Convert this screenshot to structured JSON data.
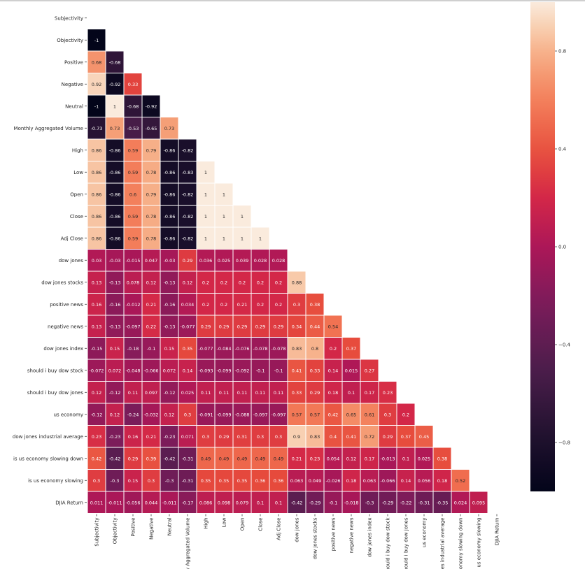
{
  "chart_data": {
    "type": "heatmap",
    "triangle": "lower",
    "colormap": "rocket",
    "vmin": -1,
    "vmax": 1,
    "labels": [
      "Subjectivity",
      "Objectivity",
      "Positive",
      "Negative",
      "Neutral",
      "Monthly Aggregated Volume",
      "High",
      "Low",
      "Open",
      "Close",
      "Adj Close",
      "dow jones",
      "dow jones stocks",
      "positive news",
      "negative news",
      "dow jones index",
      "should i buy dow stock",
      "should i buy dow jones",
      "us economy",
      "dow jones industrial average",
      "is us economy slowing down",
      "is us economy slowing",
      "DJIA Return"
    ],
    "values": [
      [],
      [
        "-1"
      ],
      [
        "0.68",
        "-0.68"
      ],
      [
        "0.92",
        "-0.92",
        "0.33"
      ],
      [
        "-1",
        "1",
        "-0.68",
        "-0.92"
      ],
      [
        "-0.73",
        "0.73",
        "-0.53",
        "-0.65",
        "0.73"
      ],
      [
        "0.86",
        "-0.86",
        "0.59",
        "0.79",
        "-0.86",
        "-0.82"
      ],
      [
        "0.86",
        "-0.86",
        "0.59",
        "0.78",
        "-0.86",
        "-0.83",
        "1"
      ],
      [
        "0.86",
        "-0.86",
        "0.6",
        "0.79",
        "-0.86",
        "-0.82",
        "1",
        "1"
      ],
      [
        "0.86",
        "-0.86",
        "0.59",
        "0.78",
        "-0.86",
        "-0.82",
        "1",
        "1",
        "1"
      ],
      [
        "0.86",
        "-0.86",
        "0.59",
        "0.78",
        "-0.86",
        "-0.82",
        "1",
        "1",
        "1",
        "1"
      ],
      [
        "0.03",
        "-0.03",
        "-0.015",
        "0.047",
        "-0.03",
        "0.29",
        "0.036",
        "0.025",
        "0.039",
        "0.028",
        "0.028"
      ],
      [
        "0.13",
        "-0.13",
        "0.078",
        "0.12",
        "-0.13",
        "0.12",
        "0.2",
        "0.2",
        "0.2",
        "0.2",
        "0.2",
        "0.88"
      ],
      [
        "0.16",
        "-0.16",
        "-0.012",
        "0.21",
        "-0.16",
        "0.034",
        "0.2",
        "0.2",
        "0.21",
        "0.2",
        "0.2",
        "0.3",
        "0.38"
      ],
      [
        "0.13",
        "-0.13",
        "-0.097",
        "0.22",
        "-0.13",
        "-0.077",
        "0.29",
        "0.29",
        "0.29",
        "0.29",
        "0.29",
        "0.34",
        "0.44",
        "0.54"
      ],
      [
        "-0.15",
        "0.15",
        "-0.18",
        "-0.1",
        "0.15",
        "0.35",
        "-0.077",
        "-0.084",
        "-0.076",
        "-0.078",
        "-0.078",
        "0.83",
        "0.8",
        "0.2",
        "0.37"
      ],
      [
        "-0.072",
        "0.072",
        "-0.048",
        "-0.066",
        "0.072",
        "0.14",
        "-0.093",
        "-0.099",
        "-0.092",
        "-0.1",
        "-0.1",
        "0.41",
        "0.33",
        "0.14",
        "0.015",
        "0.27"
      ],
      [
        "0.12",
        "-0.12",
        "0.11",
        "0.097",
        "-0.12",
        "0.025",
        "0.11",
        "0.11",
        "0.11",
        "0.11",
        "0.11",
        "0.33",
        "0.29",
        "0.18",
        "0.1",
        "0.17",
        "0.23"
      ],
      [
        "-0.12",
        "0.12",
        "-0.24",
        "-0.032",
        "0.12",
        "0.3",
        "-0.091",
        "-0.099",
        "-0.088",
        "-0.097",
        "-0.097",
        "0.57",
        "0.57",
        "0.42",
        "0.65",
        "0.61",
        "0.3",
        "0.2"
      ],
      [
        "0.23",
        "-0.23",
        "0.16",
        "0.21",
        "-0.23",
        "0.071",
        "0.3",
        "0.29",
        "0.31",
        "0.3",
        "0.3",
        "0.9",
        "0.83",
        "0.4",
        "0.41",
        "0.72",
        "0.29",
        "0.37",
        "0.45"
      ],
      [
        "0.42",
        "-0.42",
        "0.29",
        "0.39",
        "-0.42",
        "-0.31",
        "0.49",
        "0.49",
        "0.49",
        "0.49",
        "0.49",
        "0.21",
        "0.23",
        "0.054",
        "0.12",
        "0.17",
        "-0.013",
        "0.1",
        "0.025",
        "0.38"
      ],
      [
        "0.3",
        "-0.3",
        "0.15",
        "0.3",
        "-0.3",
        "-0.31",
        "0.35",
        "0.35",
        "0.35",
        "0.36",
        "0.36",
        "0.063",
        "0.049",
        "-0.026",
        "0.18",
        "0.063",
        "-0.066",
        "0.14",
        "0.056",
        "0.18",
        "0.52"
      ],
      [
        "0.011",
        "-0.011",
        "-0.056",
        "0.044",
        "-0.011",
        "-0.17",
        "0.086",
        "0.098",
        "0.079",
        "0.1",
        "0.1",
        "-0.42",
        "-0.29",
        "-0.1",
        "-0.018",
        "-0.3",
        "-0.29",
        "-0.22",
        "-0.31",
        "-0.35",
        "0.024",
        "0.095"
      ]
    ],
    "colorbar": {
      "ticks": [
        "0.8",
        "0.4",
        "0.0",
        "−0.4",
        "−0.8"
      ],
      "tick_values": [
        0.8,
        0.4,
        0.0,
        -0.4,
        -0.8
      ],
      "range": [
        -1,
        1
      ]
    }
  }
}
